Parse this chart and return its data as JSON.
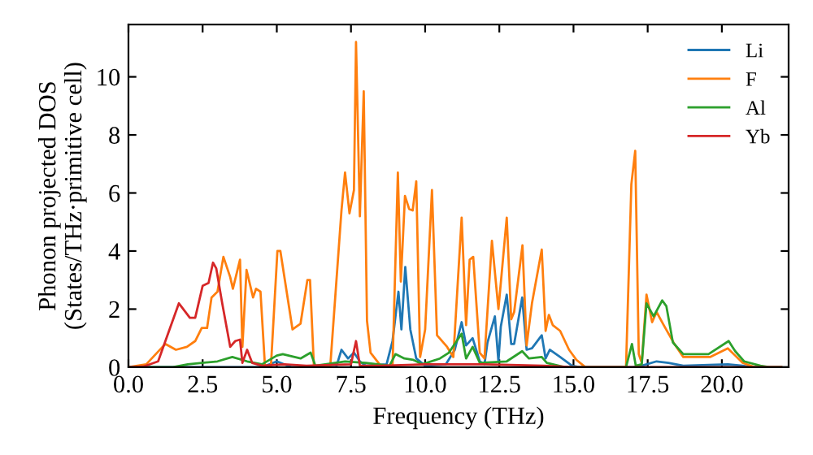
{
  "chart_data": {
    "type": "line",
    "xlabel": "Frequency (THz)",
    "ylabel": "Phonon projected DOS\n(States/THz·primitive cell)",
    "xlim": [
      0,
      22.25
    ],
    "ylim": [
      0,
      11.8
    ],
    "xticks": [
      {
        "value": 0,
        "label": "0.0"
      },
      {
        "value": 2.5,
        "label": "2.5"
      },
      {
        "value": 5,
        "label": "5.0"
      },
      {
        "value": 7.5,
        "label": "7.5"
      },
      {
        "value": 10,
        "label": "10.0"
      },
      {
        "value": 12.5,
        "label": "12.5"
      },
      {
        "value": 15,
        "label": "15.0"
      },
      {
        "value": 17.5,
        "label": "17.5"
      },
      {
        "value": 20,
        "label": "20.0"
      }
    ],
    "yticks": [
      0,
      2,
      4,
      6,
      8,
      10
    ],
    "grid": false,
    "legend": "top right",
    "marker": "none",
    "line_style": "solid",
    "series": [
      {
        "name": "Li",
        "color": "#1f77b4",
        "x": [
          0,
          4.5,
          5,
          5.5,
          7.0,
          7.18,
          7.4,
          7.6,
          7.8,
          8.0,
          8.7,
          8.9,
          9.1,
          9.2,
          9.33,
          9.5,
          9.7,
          10.0,
          10.7,
          11.0,
          11.23,
          11.38,
          11.6,
          11.84,
          12.0,
          12.1,
          12.35,
          12.47,
          12.55,
          12.75,
          12.9,
          13.0,
          13.27,
          13.42,
          13.6,
          13.93,
          14.06,
          14.2,
          14.55,
          14.95,
          15.2,
          17.0,
          17.3,
          17.8,
          18.2,
          18.7,
          20.2,
          20.7,
          21.0,
          22
        ],
        "values": [
          0,
          0,
          0.2,
          0,
          0,
          0.6,
          0.3,
          0.5,
          0.2,
          0.05,
          0.1,
          0.9,
          2.6,
          1.3,
          3.45,
          1.3,
          0.3,
          0.05,
          0.1,
          0.6,
          1.55,
          0.75,
          1.0,
          0.2,
          0.1,
          0.85,
          1.75,
          0.2,
          1.4,
          2.5,
          0.8,
          0.8,
          2.4,
          0.6,
          0.65,
          1.1,
          0.3,
          0.6,
          0.35,
          0.05,
          0,
          0,
          0.05,
          0.2,
          0.15,
          0.05,
          0.1,
          0.05,
          0,
          0
        ]
      },
      {
        "name": "F",
        "color": "#ff7f0e",
        "x": [
          0,
          0.6,
          1.24,
          1.6,
          1.97,
          2.25,
          2.47,
          2.65,
          2.8,
          3.0,
          3.2,
          3.43,
          3.52,
          3.76,
          3.84,
          3.98,
          4.2,
          4.3,
          4.45,
          4.6,
          4.8,
          5.02,
          5.12,
          5.53,
          5.8,
          6.03,
          6.12,
          6.25,
          6.8,
          7.18,
          7.3,
          7.45,
          7.6,
          7.67,
          7.8,
          7.93,
          8.04,
          8.16,
          8.5,
          8.9,
          9.08,
          9.18,
          9.32,
          9.46,
          9.58,
          9.7,
          9.83,
          10.0,
          10.23,
          10.4,
          10.74,
          10.95,
          11.23,
          11.38,
          11.5,
          11.62,
          11.84,
          12.0,
          12.25,
          12.47,
          12.75,
          12.9,
          13.0,
          13.28,
          13.42,
          13.6,
          13.93,
          14.06,
          14.17,
          14.3,
          14.55,
          14.85,
          15.1,
          15.4,
          16.77,
          16.95,
          17.08,
          17.2,
          17.3,
          17.46,
          17.65,
          17.8,
          18.04,
          18.4,
          18.7,
          19.6,
          20.2,
          20.45,
          20.7,
          21.1,
          22
        ],
        "values": [
          0,
          0.1,
          0.8,
          0.6,
          0.7,
          0.9,
          1.35,
          1.35,
          2.4,
          2.6,
          3.8,
          3.1,
          2.7,
          3.7,
          0.7,
          3.35,
          2.4,
          2.7,
          2.6,
          0.05,
          0,
          4.0,
          4.0,
          1.3,
          1.5,
          3.0,
          3.0,
          0.05,
          0,
          5.4,
          6.7,
          5.3,
          6.1,
          11.2,
          5.2,
          9.5,
          1.6,
          0.5,
          0.05,
          0,
          6.7,
          2.95,
          5.9,
          5.45,
          5.4,
          6.4,
          0.35,
          1.3,
          6.1,
          1.1,
          0.7,
          0.35,
          5.15,
          1.45,
          3.7,
          3.8,
          0.5,
          0.3,
          4.35,
          2.0,
          5.15,
          1.65,
          1.9,
          4.2,
          0.75,
          2.2,
          4.05,
          1.25,
          1.8,
          1.45,
          1.25,
          0.6,
          0.25,
          0,
          0,
          6.3,
          7.45,
          0.45,
          0.15,
          2.5,
          1.55,
          1.9,
          1.45,
          0.8,
          0.35,
          0.35,
          0.65,
          0.4,
          0.15,
          0,
          0
        ]
      },
      {
        "name": "Al",
        "color": "#2ca02c",
        "x": [
          0,
          1.5,
          2.0,
          3.0,
          3.5,
          4.0,
          4.5,
          5.0,
          5.2,
          5.8,
          6.14,
          6.3,
          7.3,
          8.0,
          8.8,
          9.0,
          9.3,
          9.6,
          9.9,
          10.5,
          10.8,
          11.23,
          11.38,
          11.6,
          11.84,
          12.75,
          13.27,
          13.5,
          13.93,
          14.1,
          14.7,
          16.77,
          16.97,
          17.1,
          17.3,
          17.46,
          17.7,
          17.99,
          18.13,
          18.35,
          18.7,
          19.55,
          20.23,
          20.45,
          20.75,
          21.3,
          21.6,
          22
        ],
        "values": [
          0,
          0,
          0.1,
          0.2,
          0.35,
          0.2,
          0.1,
          0.4,
          0.45,
          0.3,
          0.5,
          0.05,
          0.2,
          0.15,
          0.05,
          0.45,
          0.3,
          0.25,
          0.1,
          0.3,
          0.5,
          1.15,
          0.3,
          0.7,
          0.15,
          0.2,
          0.55,
          0.3,
          0.35,
          0.15,
          0,
          0,
          0.8,
          0.05,
          0.1,
          2.2,
          1.75,
          2.3,
          2.1,
          0.85,
          0.45,
          0.45,
          0.9,
          0.55,
          0.2,
          0.05,
          0,
          0
        ]
      },
      {
        "name": "Yb",
        "color": "#d62728",
        "x": [
          0,
          0.5,
          1.0,
          1.7,
          2.07,
          2.25,
          2.5,
          2.7,
          2.85,
          2.96,
          3.16,
          3.43,
          3.6,
          3.76,
          3.84,
          4.0,
          4.17,
          4.5,
          5.25,
          6.0,
          7.5,
          7.67,
          7.8,
          8.5,
          10,
          12,
          14,
          15,
          22
        ],
        "values": [
          0,
          0.02,
          0.2,
          2.2,
          1.7,
          1.7,
          2.8,
          2.9,
          3.6,
          3.4,
          2.2,
          0.7,
          0.9,
          0.95,
          0.15,
          0.6,
          0.15,
          0.05,
          0.1,
          0.05,
          0.1,
          0.9,
          0.05,
          0.05,
          0.1,
          0.1,
          0.05,
          0,
          0
        ]
      }
    ]
  }
}
